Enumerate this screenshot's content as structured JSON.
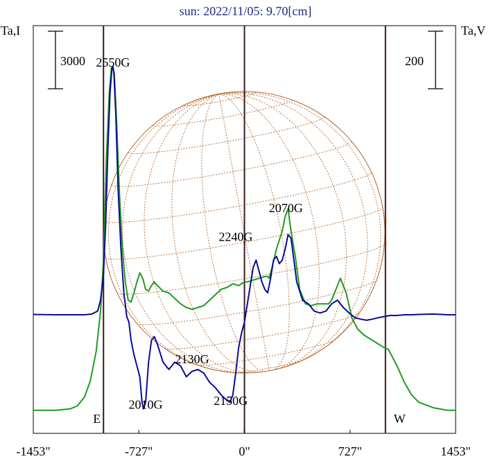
{
  "chart_data": {
    "type": "line",
    "title": "sun: 2022/11/05: 9.70[cm]",
    "left_axis_label": "Ta,I",
    "right_axis_label": "Ta,V",
    "left_scale_label": "3000",
    "right_scale_label": "200",
    "x_ticks": [
      {
        "value": -1453,
        "label": "-1453\""
      },
      {
        "value": -727,
        "label": "-727\""
      },
      {
        "value": 0,
        "label": "0\""
      },
      {
        "value": 727,
        "label": "727\""
      },
      {
        "value": 1453,
        "label": "1453\""
      }
    ],
    "xlim": [
      -1453,
      1453
    ],
    "limb_markers": [
      {
        "x": -970,
        "label": "E"
      },
      {
        "x": 970,
        "label": "W"
      },
      {
        "x": 0,
        "label": ""
      }
    ],
    "annotations": [
      {
        "text": "2550G",
        "x": -905,
        "y": 0.951
      },
      {
        "text": "2240G",
        "x": -60,
        "y": 0.472
      },
      {
        "text": "2070G",
        "x": 285,
        "y": 0.551
      },
      {
        "text": "2130G",
        "x": -360,
        "y": 0.137
      },
      {
        "text": "2010G",
        "x": -680,
        "y": 0.012
      },
      {
        "text": "2150G",
        "x": -95,
        "y": 0.023
      }
    ],
    "colors": {
      "title": "#1e2a80",
      "stokes_i": "#1f9a1f",
      "stokes_v": "#0a0a9a",
      "limb_lines": "#3a1a1a",
      "disk": "#b5652a",
      "frame": "#000000"
    },
    "series": [
      {
        "key": "stokes_i",
        "x": [
          -1453,
          -1300,
          -1200,
          -1150,
          -1100,
          -1060,
          -1020,
          -990,
          -970,
          -950,
          -930,
          -915,
          -905,
          -895,
          -880,
          -860,
          -840,
          -820,
          -800,
          -780,
          -760,
          -740,
          -720,
          -700,
          -680,
          -660,
          -640,
          -620,
          -600,
          -560,
          -520,
          -480,
          -440,
          -400,
          -360,
          -320,
          -280,
          -240,
          -200,
          -160,
          -120,
          -80,
          -40,
          0,
          20,
          60,
          100,
          140,
          160,
          170,
          190,
          220,
          260,
          280,
          300,
          320,
          350,
          380,
          420,
          460,
          500,
          540,
          580,
          600,
          620,
          660,
          700,
          740,
          780,
          820,
          860,
          900,
          960,
          990,
          1010,
          1050,
          1100,
          1150,
          1200,
          1300,
          1400,
          1453
        ],
        "y": [
          0.008,
          0.008,
          0.012,
          0.02,
          0.045,
          0.09,
          0.17,
          0.28,
          0.42,
          0.7,
          0.88,
          0.948,
          0.951,
          0.93,
          0.8,
          0.6,
          0.45,
          0.36,
          0.31,
          0.305,
          0.33,
          0.36,
          0.385,
          0.37,
          0.34,
          0.335,
          0.35,
          0.36,
          0.35,
          0.335,
          0.33,
          0.315,
          0.3,
          0.29,
          0.285,
          0.29,
          0.295,
          0.31,
          0.325,
          0.34,
          0.345,
          0.355,
          0.35,
          0.36,
          0.36,
          0.365,
          0.37,
          0.375,
          0.375,
          0.37,
          0.4,
          0.45,
          0.5,
          0.54,
          0.56,
          0.5,
          0.43,
          0.34,
          0.3,
          0.295,
          0.3,
          0.3,
          0.3,
          0.31,
          0.33,
          0.37,
          0.33,
          0.26,
          0.23,
          0.215,
          0.205,
          0.195,
          0.18,
          0.175,
          0.16,
          0.13,
          0.085,
          0.05,
          0.03,
          0.015,
          0.008,
          0.008
        ]
      },
      {
        "key": "stokes_v",
        "x": [
          -1453,
          -1300,
          -1200,
          -1100,
          -1050,
          -1010,
          -990,
          -970,
          -955,
          -940,
          -925,
          -912,
          -905,
          -898,
          -885,
          -870,
          -850,
          -830,
          -810,
          -795,
          -780,
          -760,
          -740,
          -720,
          -705,
          -695,
          -680,
          -660,
          -640,
          -620,
          -600,
          -560,
          -520,
          -480,
          -440,
          -400,
          -360,
          -320,
          -280,
          -240,
          -200,
          -160,
          -120,
          -100,
          -80,
          -60,
          -40,
          -20,
          0,
          20,
          40,
          60,
          80,
          100,
          120,
          140,
          160,
          180,
          200,
          220,
          240,
          260,
          280,
          300,
          320,
          340,
          360,
          400,
          440,
          480,
          520,
          560,
          600,
          640,
          680,
          720,
          760,
          800,
          840,
          880,
          920,
          960,
          1000,
          1050,
          1100,
          1150,
          1200,
          1300,
          1400,
          1453
        ],
        "y": [
          0.271,
          0.27,
          0.27,
          0.27,
          0.272,
          0.28,
          0.31,
          0.38,
          0.52,
          0.72,
          0.88,
          0.947,
          0.95,
          0.93,
          0.82,
          0.62,
          0.45,
          0.33,
          0.265,
          0.25,
          0.2,
          0.16,
          0.13,
          0.1,
          0.03,
          0.012,
          0.03,
          0.14,
          0.2,
          0.21,
          0.19,
          0.14,
          0.12,
          0.14,
          0.13,
          0.1,
          0.115,
          0.12,
          0.11,
          0.085,
          0.07,
          0.05,
          0.035,
          0.03,
          0.05,
          0.11,
          0.18,
          0.22,
          0.25,
          0.3,
          0.35,
          0.4,
          0.42,
          0.39,
          0.36,
          0.34,
          0.33,
          0.37,
          0.42,
          0.43,
          0.41,
          0.42,
          0.45,
          0.49,
          0.48,
          0.42,
          0.36,
          0.31,
          0.3,
          0.28,
          0.275,
          0.28,
          0.3,
          0.31,
          0.29,
          0.275,
          0.262,
          0.258,
          0.255,
          0.258,
          0.262,
          0.265,
          0.268,
          0.268,
          0.27,
          0.27,
          0.271,
          0.272,
          0.27,
          0.27
        ]
      }
    ]
  }
}
